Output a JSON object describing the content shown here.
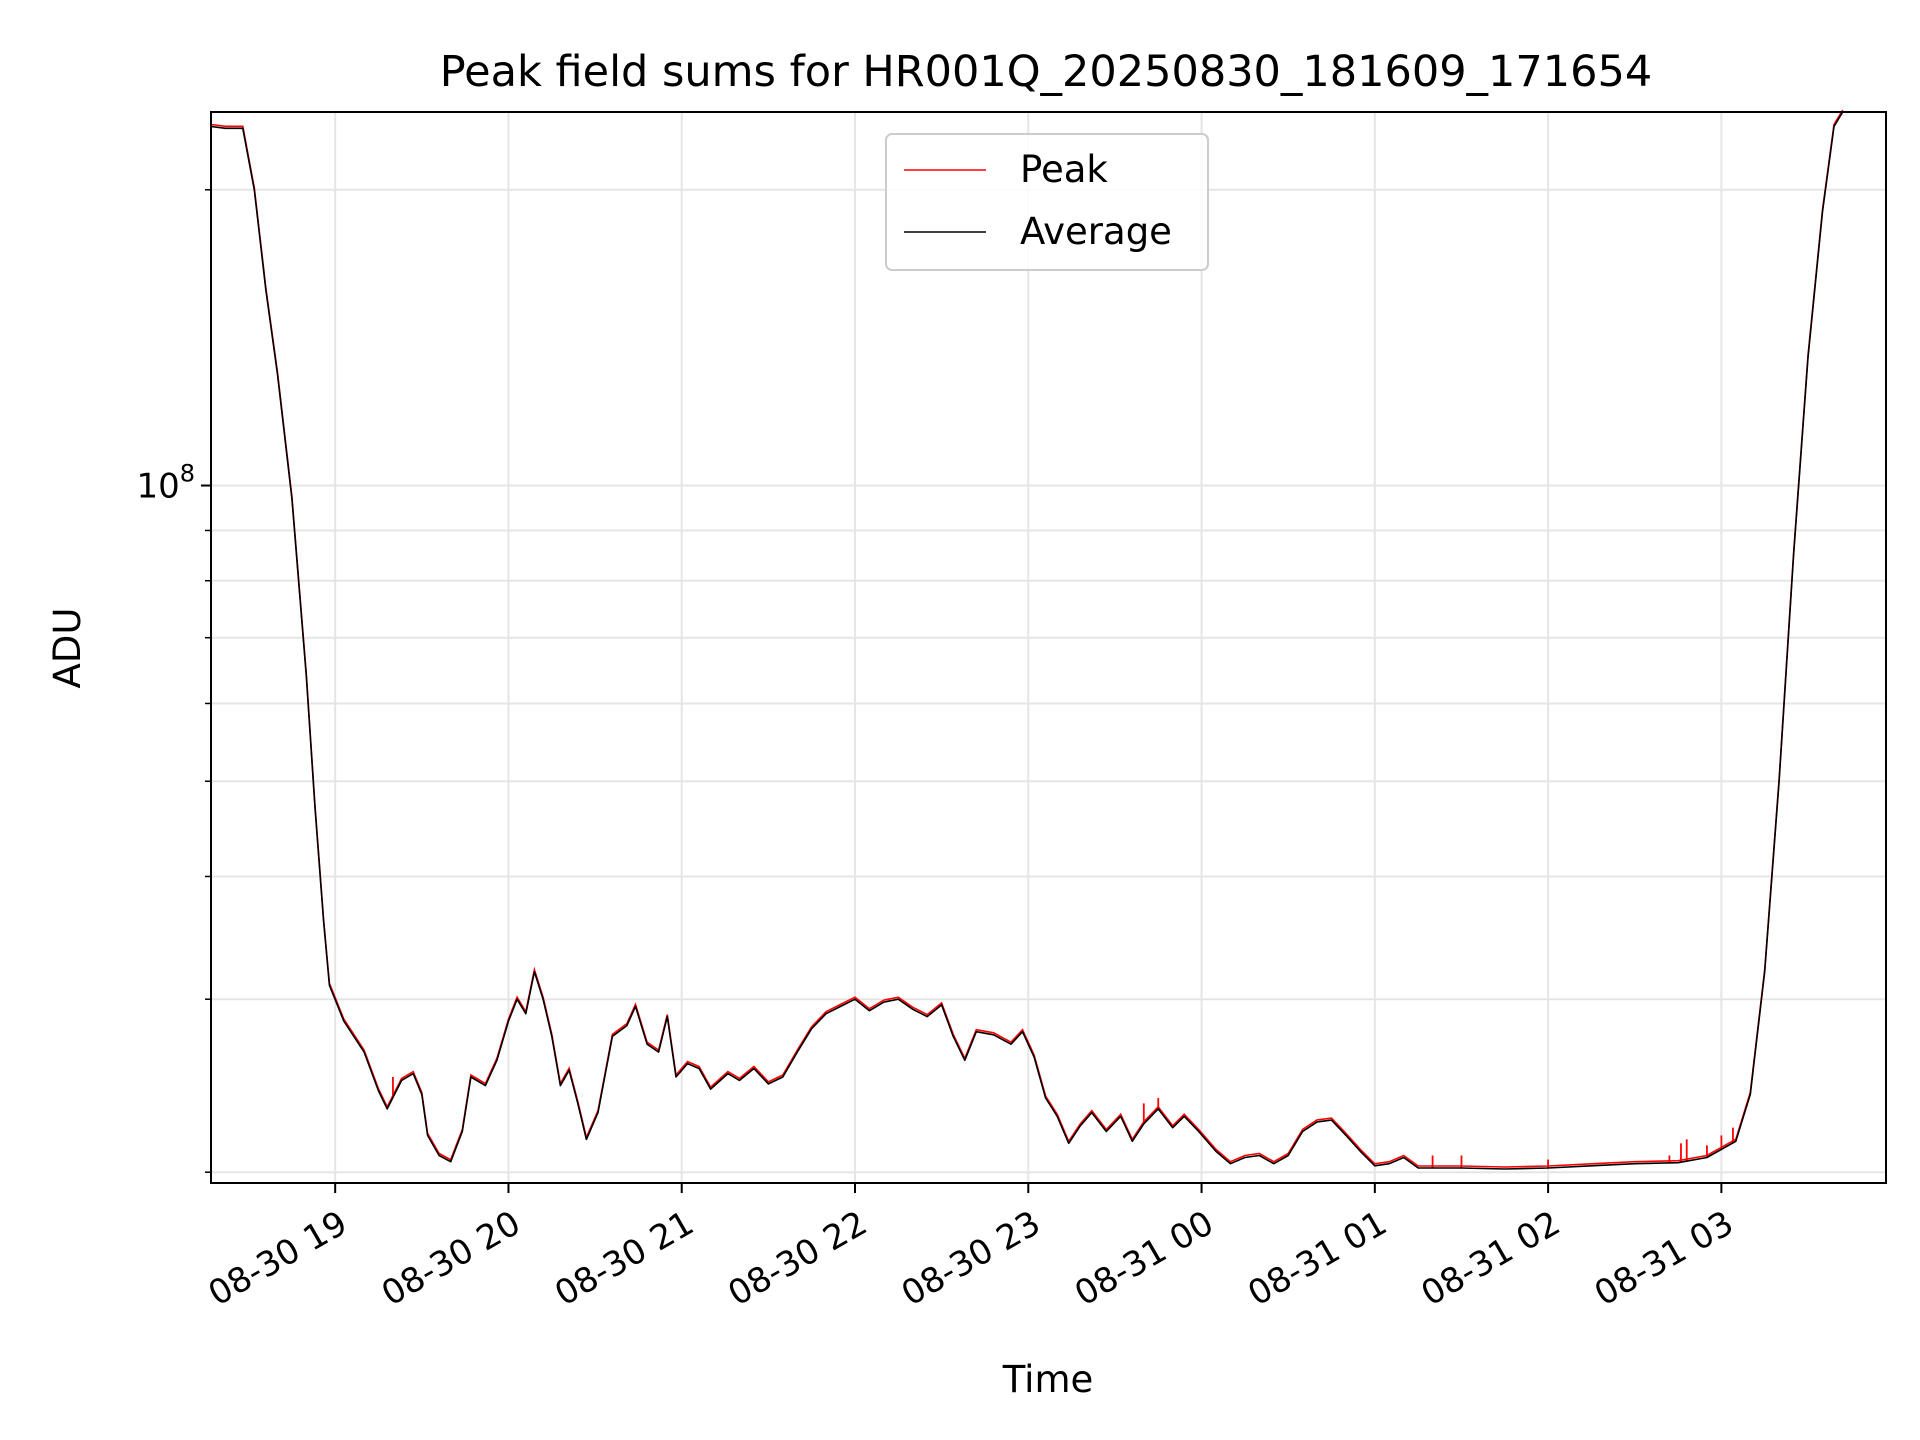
{
  "chart_data": {
    "type": "line",
    "title": "Peak field sums for HR001Q_20250830_181609_171654",
    "xlabel": "Time",
    "ylabel": "ADU",
    "yscale": "log",
    "ylim": [
      19500000,
      240000000
    ],
    "ytick_major": [
      {
        "value": 100000000,
        "base": "10",
        "exp": "8"
      }
    ],
    "ytick_minor": [
      20000000,
      30000000,
      40000000,
      50000000,
      60000000,
      70000000,
      80000000,
      90000000,
      200000000
    ],
    "xlim": [
      "2025-08-30 18:17",
      "2025-08-31 03:57"
    ],
    "xticks": [
      {
        "t": "2025-08-30 19:00",
        "label": "08-30 19"
      },
      {
        "t": "2025-08-30 20:00",
        "label": "08-30 20"
      },
      {
        "t": "2025-08-30 21:00",
        "label": "08-30 21"
      },
      {
        "t": "2025-08-30 22:00",
        "label": "08-30 22"
      },
      {
        "t": "2025-08-30 23:00",
        "label": "08-30 23"
      },
      {
        "t": "2025-08-31 00:00",
        "label": "08-31 00"
      },
      {
        "t": "2025-08-31 01:00",
        "label": "08-31 01"
      },
      {
        "t": "2025-08-31 02:00",
        "label": "08-31 02"
      },
      {
        "t": "2025-08-31 03:00",
        "label": "08-31 03"
      }
    ],
    "grid": true,
    "legend_position": "upper center",
    "series": [
      {
        "name": "Average",
        "color": "#000000",
        "points": [
          [
            "2025-08-30 18:17",
            232000000
          ],
          [
            "2025-08-30 18:22",
            231000000
          ],
          [
            "2025-08-30 18:28",
            231000000
          ],
          [
            "2025-08-30 18:32",
            200000000
          ],
          [
            "2025-08-30 18:36",
            158000000
          ],
          [
            "2025-08-30 18:40",
            130000000
          ],
          [
            "2025-08-30 18:45",
            97000000
          ],
          [
            "2025-08-30 18:50",
            64000000
          ],
          [
            "2025-08-30 18:53",
            47000000
          ],
          [
            "2025-08-30 18:56",
            36000000
          ],
          [
            "2025-08-30 18:58",
            31000000
          ],
          [
            "2025-08-30 19:03",
            28500000
          ],
          [
            "2025-08-30 19:10",
            26500000
          ],
          [
            "2025-08-30 19:15",
            24200000
          ],
          [
            "2025-08-30 19:18",
            23200000
          ],
          [
            "2025-08-30 19:23",
            24800000
          ],
          [
            "2025-08-30 19:27",
            25200000
          ],
          [
            "2025-08-30 19:30",
            24000000
          ],
          [
            "2025-08-30 19:32",
            21800000
          ],
          [
            "2025-08-30 19:36",
            20800000
          ],
          [
            "2025-08-30 19:40",
            20500000
          ],
          [
            "2025-08-30 19:44",
            22000000
          ],
          [
            "2025-08-30 19:47",
            25000000
          ],
          [
            "2025-08-30 19:52",
            24500000
          ],
          [
            "2025-08-30 19:56",
            26000000
          ],
          [
            "2025-08-30 20:00",
            28500000
          ],
          [
            "2025-08-30 20:03",
            30000000
          ],
          [
            "2025-08-30 20:06",
            29000000
          ],
          [
            "2025-08-30 20:09",
            32000000
          ],
          [
            "2025-08-30 20:12",
            30000000
          ],
          [
            "2025-08-30 20:15",
            27500000
          ],
          [
            "2025-08-30 20:18",
            24500000
          ],
          [
            "2025-08-30 20:21",
            25400000
          ],
          [
            "2025-08-30 20:24",
            23500000
          ],
          [
            "2025-08-30 20:27",
            21600000
          ],
          [
            "2025-08-30 20:31",
            23000000
          ],
          [
            "2025-08-30 20:36",
            27500000
          ],
          [
            "2025-08-30 20:41",
            28200000
          ],
          [
            "2025-08-30 20:44",
            29500000
          ],
          [
            "2025-08-30 20:48",
            27000000
          ],
          [
            "2025-08-30 20:52",
            26500000
          ],
          [
            "2025-08-30 20:55",
            28800000
          ],
          [
            "2025-08-30 20:58",
            25000000
          ],
          [
            "2025-08-30 21:02",
            25800000
          ],
          [
            "2025-08-30 21:06",
            25500000
          ],
          [
            "2025-08-30 21:10",
            24300000
          ],
          [
            "2025-08-30 21:16",
            25200000
          ],
          [
            "2025-08-30 21:20",
            24800000
          ],
          [
            "2025-08-30 21:25",
            25500000
          ],
          [
            "2025-08-30 21:30",
            24600000
          ],
          [
            "2025-08-30 21:35",
            25000000
          ],
          [
            "2025-08-30 21:40",
            26500000
          ],
          [
            "2025-08-30 21:45",
            28000000
          ],
          [
            "2025-08-30 21:50",
            29000000
          ],
          [
            "2025-08-30 21:55",
            29500000
          ],
          [
            "2025-08-30 22:00",
            30000000
          ],
          [
            "2025-08-30 22:05",
            29200000
          ],
          [
            "2025-08-30 22:10",
            29800000
          ],
          [
            "2025-08-30 22:15",
            30000000
          ],
          [
            "2025-08-30 22:20",
            29300000
          ],
          [
            "2025-08-30 22:25",
            28800000
          ],
          [
            "2025-08-30 22:30",
            29600000
          ],
          [
            "2025-08-30 22:34",
            27500000
          ],
          [
            "2025-08-30 22:38",
            26000000
          ],
          [
            "2025-08-30 22:42",
            27800000
          ],
          [
            "2025-08-30 22:48",
            27600000
          ],
          [
            "2025-08-30 22:54",
            27000000
          ],
          [
            "2025-08-30 22:58",
            27800000
          ],
          [
            "2025-08-30 23:02",
            26200000
          ],
          [
            "2025-08-30 23:06",
            23800000
          ],
          [
            "2025-08-30 23:10",
            22800000
          ],
          [
            "2025-08-30 23:14",
            21400000
          ],
          [
            "2025-08-30 23:18",
            22300000
          ],
          [
            "2025-08-30 23:22",
            23000000
          ],
          [
            "2025-08-30 23:27",
            22000000
          ],
          [
            "2025-08-30 23:32",
            22800000
          ],
          [
            "2025-08-30 23:36",
            21500000
          ],
          [
            "2025-08-30 23:40",
            22400000
          ],
          [
            "2025-08-30 23:45",
            23200000
          ],
          [
            "2025-08-30 23:50",
            22200000
          ],
          [
            "2025-08-30 23:54",
            22800000
          ],
          [
            "2025-08-30 23:59",
            22000000
          ],
          [
            "2025-08-31 00:05",
            21000000
          ],
          [
            "2025-08-31 00:10",
            20400000
          ],
          [
            "2025-08-31 00:15",
            20700000
          ],
          [
            "2025-08-31 00:20",
            20800000
          ],
          [
            "2025-08-31 00:25",
            20400000
          ],
          [
            "2025-08-31 00:30",
            20800000
          ],
          [
            "2025-08-31 00:35",
            22000000
          ],
          [
            "2025-08-31 00:40",
            22500000
          ],
          [
            "2025-08-31 00:45",
            22600000
          ],
          [
            "2025-08-31 00:50",
            21800000
          ],
          [
            "2025-08-31 00:55",
            21000000
          ],
          [
            "2025-08-31 01:00",
            20300000
          ],
          [
            "2025-08-31 01:05",
            20400000
          ],
          [
            "2025-08-31 01:10",
            20700000
          ],
          [
            "2025-08-31 01:15",
            20200000
          ],
          [
            "2025-08-31 01:30",
            20200000
          ],
          [
            "2025-08-31 01:45",
            20150000
          ],
          [
            "2025-08-31 02:00",
            20200000
          ],
          [
            "2025-08-31 02:15",
            20300000
          ],
          [
            "2025-08-31 02:30",
            20400000
          ],
          [
            "2025-08-31 02:45",
            20450000
          ],
          [
            "2025-08-31 02:55",
            20700000
          ],
          [
            "2025-08-31 03:05",
            21500000
          ],
          [
            "2025-08-31 03:10",
            24000000
          ],
          [
            "2025-08-31 03:15",
            32000000
          ],
          [
            "2025-08-31 03:20",
            50000000
          ],
          [
            "2025-08-31 03:25",
            85000000
          ],
          [
            "2025-08-31 03:30",
            135000000
          ],
          [
            "2025-08-31 03:35",
            190000000
          ],
          [
            "2025-08-31 03:39",
            232000000
          ],
          [
            "2025-08-31 03:42",
            240000000
          ]
        ]
      },
      {
        "name": "Peak",
        "color": "#ff0000",
        "spikes": [
          [
            "2025-08-30 19:20",
            25000000
          ],
          [
            "2025-08-30 23:40",
            23500000
          ],
          [
            "2025-08-30 23:45",
            23800000
          ],
          [
            "2025-08-31 01:20",
            20800000
          ],
          [
            "2025-08-31 01:30",
            20800000
          ],
          [
            "2025-08-31 02:00",
            20600000
          ],
          [
            "2025-08-31 02:42",
            20800000
          ],
          [
            "2025-08-31 02:46",
            21400000
          ],
          [
            "2025-08-31 02:48",
            21600000
          ],
          [
            "2025-08-31 02:55",
            21300000
          ],
          [
            "2025-08-31 03:00",
            21800000
          ],
          [
            "2025-08-31 03:04",
            22200000
          ]
        ]
      }
    ]
  }
}
